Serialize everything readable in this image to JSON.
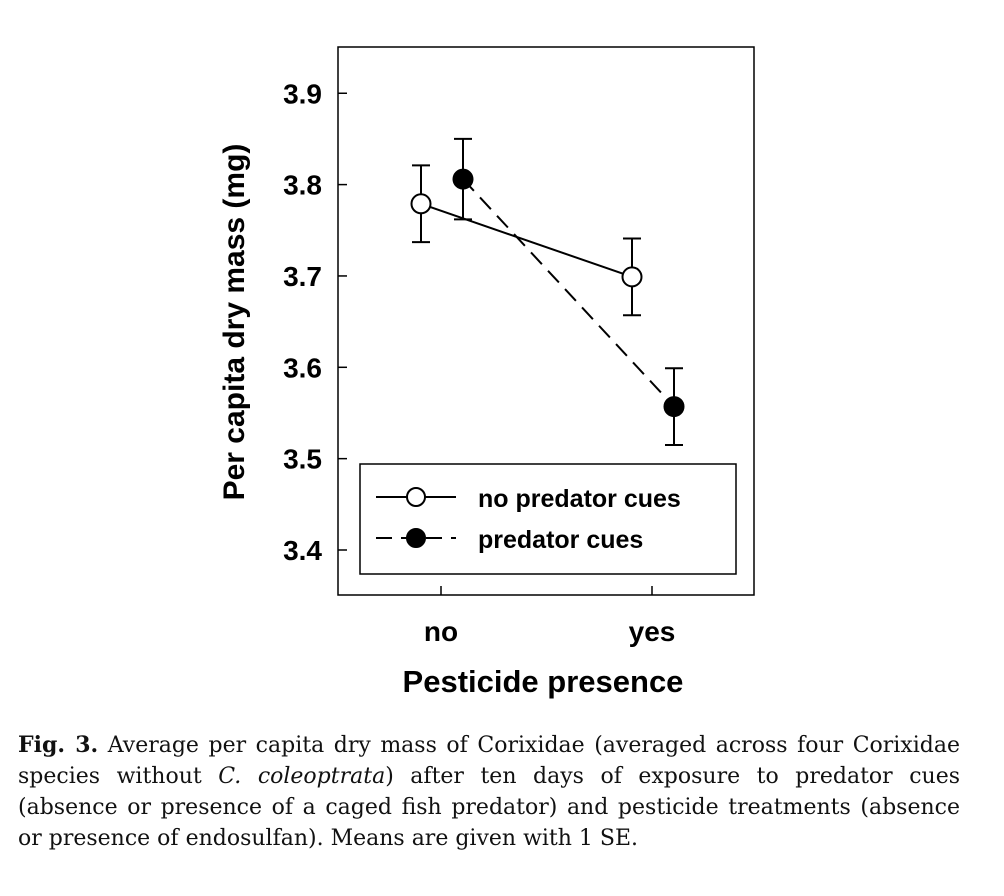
{
  "chart_data": {
    "type": "line",
    "xlabel": "Pesticide presence",
    "ylabel": "Per capita dry mass (mg)",
    "categories": [
      "no",
      "yes"
    ],
    "ylim": [
      3.35,
      3.95
    ],
    "yticks": [
      "3.4",
      "3.5",
      "3.6",
      "3.7",
      "3.8",
      "3.9"
    ],
    "ytick_values": [
      3.4,
      3.5,
      3.6,
      3.7,
      3.8,
      3.9
    ],
    "grid": false,
    "legend_position": "bottom",
    "series": [
      {
        "name": "no predator cues",
        "marker": "open-circle",
        "line_style": "solid",
        "values": [
          3.779,
          3.699
        ],
        "se": [
          0.042,
          0.042
        ]
      },
      {
        "name": "predator cues",
        "marker": "filled-circle",
        "line_style": "dashed",
        "values": [
          3.806,
          3.557
        ],
        "se": [
          0.044,
          0.042
        ]
      }
    ]
  },
  "caption": {
    "label": "Fig. 3.",
    "text_before": " Average per capita dry mass of Corixidae (averaged across four Corixidae species without ",
    "italic": "C. coleoptrata",
    "text_after": ") after ten days of exposure to predator cues (absence or presence of a caged fish predator) and pesticide treatments (absence or presence of endosulfan). Means are given with 1 SE."
  }
}
